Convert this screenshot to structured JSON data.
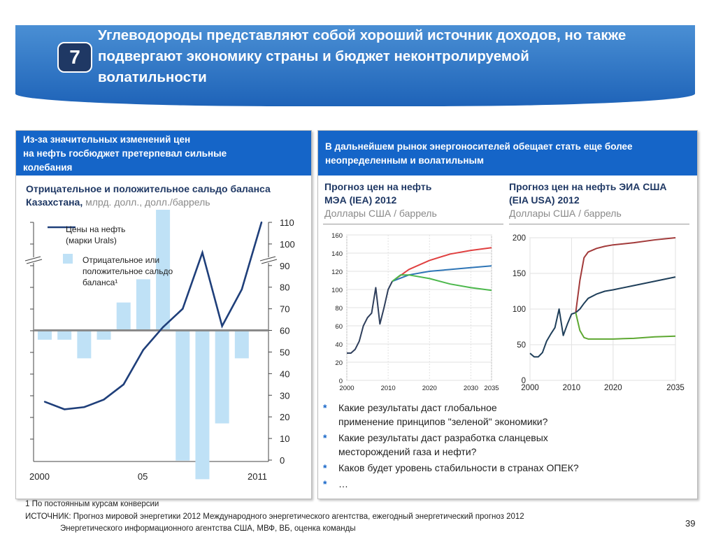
{
  "slide": {
    "number": "7",
    "title_lines": [
      "Углеводороды представляют собой хороший источник доходов, но также",
      "подвергают экономику страны и бюджет неконтролируемой",
      "волатильности"
    ],
    "page_number": "39"
  },
  "left_panel": {
    "header_lines": [
      "Из-за значительных изменений цен",
      "на нефть госбюджет претерпевал сильные",
      "колебания"
    ],
    "subtitle_line1": "Отрицательное и положительное сальдо баланса",
    "subtitle_bold": "Казахстана,",
    "subtitle_units": " млрд. долл., долл./баррель",
    "legend": {
      "line_lines": [
        "Цены на нефть",
        "(марки Urals)"
      ],
      "bar_lines": [
        "Отрицательное или",
        "положительное сальдо",
        "баланса¹"
      ]
    }
  },
  "right_panel": {
    "header_lines": [
      "В дальнейшем рынок энергоносителей обещает стать еще более",
      "неопределенным и волатильным"
    ],
    "iea_title_lines": [
      "Прогноз цен на нефть",
      "МЭА (IEA) 2012"
    ],
    "iea_units": "Доллары США / баррель",
    "eia_title_lines": [
      "Прогноз цен на нефть ЭИА США",
      "(EIA USA) 2012"
    ],
    "eia_units": "Доллары США / баррель",
    "bullets": [
      "Какие результаты даст глобальное",
      "применение принципов \"зеленой\" экономики?",
      "Какие результаты даст разработка сланцевых",
      "месторождений газа и нефти?",
      "Каков будет уровень стабильности в странах ОПЕК?",
      "…"
    ],
    "bullet_marker": "*"
  },
  "footnotes": {
    "note1": "1  По постоянным курсам конверсии",
    "source_line1": "ИСТОЧНИК: Прогноз мировой энергетики 2012 Международного энергетического агентства, ежегодный энергетический прогноз 2012",
    "source_line2": "Энергетического информационного агентства США, МВФ, ВБ, оценка команды"
  },
  "colors": {
    "header_blue": "#1565c8",
    "navy": "#1f3864",
    "bar_light_blue": "#bfe1f6",
    "oil_line": "#1f3f7a",
    "series_red": "#e04040",
    "series_blue": "#2e75b6",
    "series_green": "#4cb84c",
    "eia_red": "#a23a3a",
    "eia_navy": "#1f3f5a",
    "eia_green": "#5ea832"
  },
  "chart_data": [
    {
      "type": "bar+line",
      "x_tick_labels": [
        "2000",
        "05",
        "2011"
      ],
      "right_axis_ticks": [
        "110",
        "100",
        "90",
        "80",
        "70",
        "60",
        "50",
        "40",
        "30",
        "20",
        "10",
        "0"
      ],
      "ylim_right": [
        0,
        110
      ],
      "years": [
        2000,
        2001,
        2002,
        2003,
        2004,
        2005,
        2006,
        2007,
        2008,
        2009,
        2010,
        2011
      ],
      "series": [
        {
          "name": "Отрицательное или положительное сальдо баланса",
          "type": "bar",
          "values": [
            -1.0,
            -1.0,
            -3.0,
            -1.0,
            3.0,
            5.5,
            13.0,
            -14.0,
            -16.0,
            -10.0,
            -3.0,
            null
          ]
        },
        {
          "name": "Цены на нефть (марки Urals)",
          "type": "line",
          "values": [
            27,
            23.5,
            24.5,
            28,
            35,
            51,
            61.5,
            70,
            96,
            62,
            79,
            110
          ]
        }
      ],
      "bar_offsets": [
        -1.0,
        -1.0,
        -3.0,
        -1.0,
        3.0,
        5.5,
        13.0,
        -14.0,
        -16.0,
        -10.0,
        -3.0,
        null
      ],
      "zero_line_price_level": 60
    },
    {
      "type": "line",
      "y_ticks": [
        "160",
        "140",
        "120",
        "100",
        "80",
        "60",
        "40",
        "20",
        "0"
      ],
      "x_ticks": [
        "2000",
        "2010",
        "2020",
        "2030",
        "2035"
      ],
      "ylim": [
        0,
        160
      ],
      "xlim": [
        2000,
        2035
      ],
      "series": [
        {
          "type": "line",
          "x": [
            2000,
            2001,
            2002,
            2003,
            2004,
            2005,
            2006,
            2007,
            2008,
            2009,
            2010,
            2011
          ],
          "y": [
            30,
            30,
            34,
            43,
            60,
            69,
            74,
            102,
            62,
            80,
            100,
            109
          ]
        },
        {
          "type": "line",
          "x": [
            2011,
            2015,
            2020,
            2025,
            2030,
            2035
          ],
          "y": [
            109,
            122,
            132,
            139,
            143,
            146
          ]
        },
        {
          "type": "line",
          "x": [
            2011,
            2015,
            2020,
            2025,
            2030,
            2035
          ],
          "y": [
            109,
            116,
            120,
            122,
            124,
            126
          ]
        },
        {
          "type": "line",
          "x": [
            2011,
            2013,
            2015,
            2020,
            2025,
            2030,
            2035
          ],
          "y": [
            109,
            116,
            116,
            112,
            106,
            102,
            99
          ]
        }
      ]
    },
    {
      "type": "line",
      "y_ticks": [
        "200",
        "150",
        "100",
        "50",
        "0"
      ],
      "x_ticks": [
        "2000",
        "2010",
        "2020",
        "2035"
      ],
      "ylim": [
        0,
        200
      ],
      "xlim": [
        2000,
        2035
      ],
      "series": [
        {
          "type": "line",
          "x": [
            2000,
            2001,
            2002,
            2003,
            2004,
            2005,
            2006,
            2007,
            2008,
            2009,
            2010,
            2011
          ],
          "y": [
            38,
            33,
            33,
            39,
            55,
            65,
            74,
            100,
            63,
            79,
            93,
            95
          ]
        },
        {
          "type": "line",
          "x": [
            2011,
            2012,
            2013,
            2014,
            2016,
            2018,
            2020,
            2025,
            2030,
            2035
          ],
          "y": [
            95,
            140,
            172,
            180,
            185,
            188,
            190,
            193,
            197,
            200
          ]
        },
        {
          "type": "line",
          "x": [
            2011,
            2012,
            2013,
            2014,
            2016,
            2018,
            2020,
            2025,
            2030,
            2035
          ],
          "y": [
            95,
            100,
            108,
            115,
            121,
            125,
            127,
            133,
            139,
            145
          ]
        },
        {
          "type": "line",
          "x": [
            2011,
            2012,
            2013,
            2014,
            2016,
            2018,
            2020,
            2025,
            2030,
            2035
          ],
          "y": [
            95,
            70,
            60,
            58,
            58,
            58,
            58,
            59,
            61,
            62
          ]
        }
      ]
    }
  ]
}
